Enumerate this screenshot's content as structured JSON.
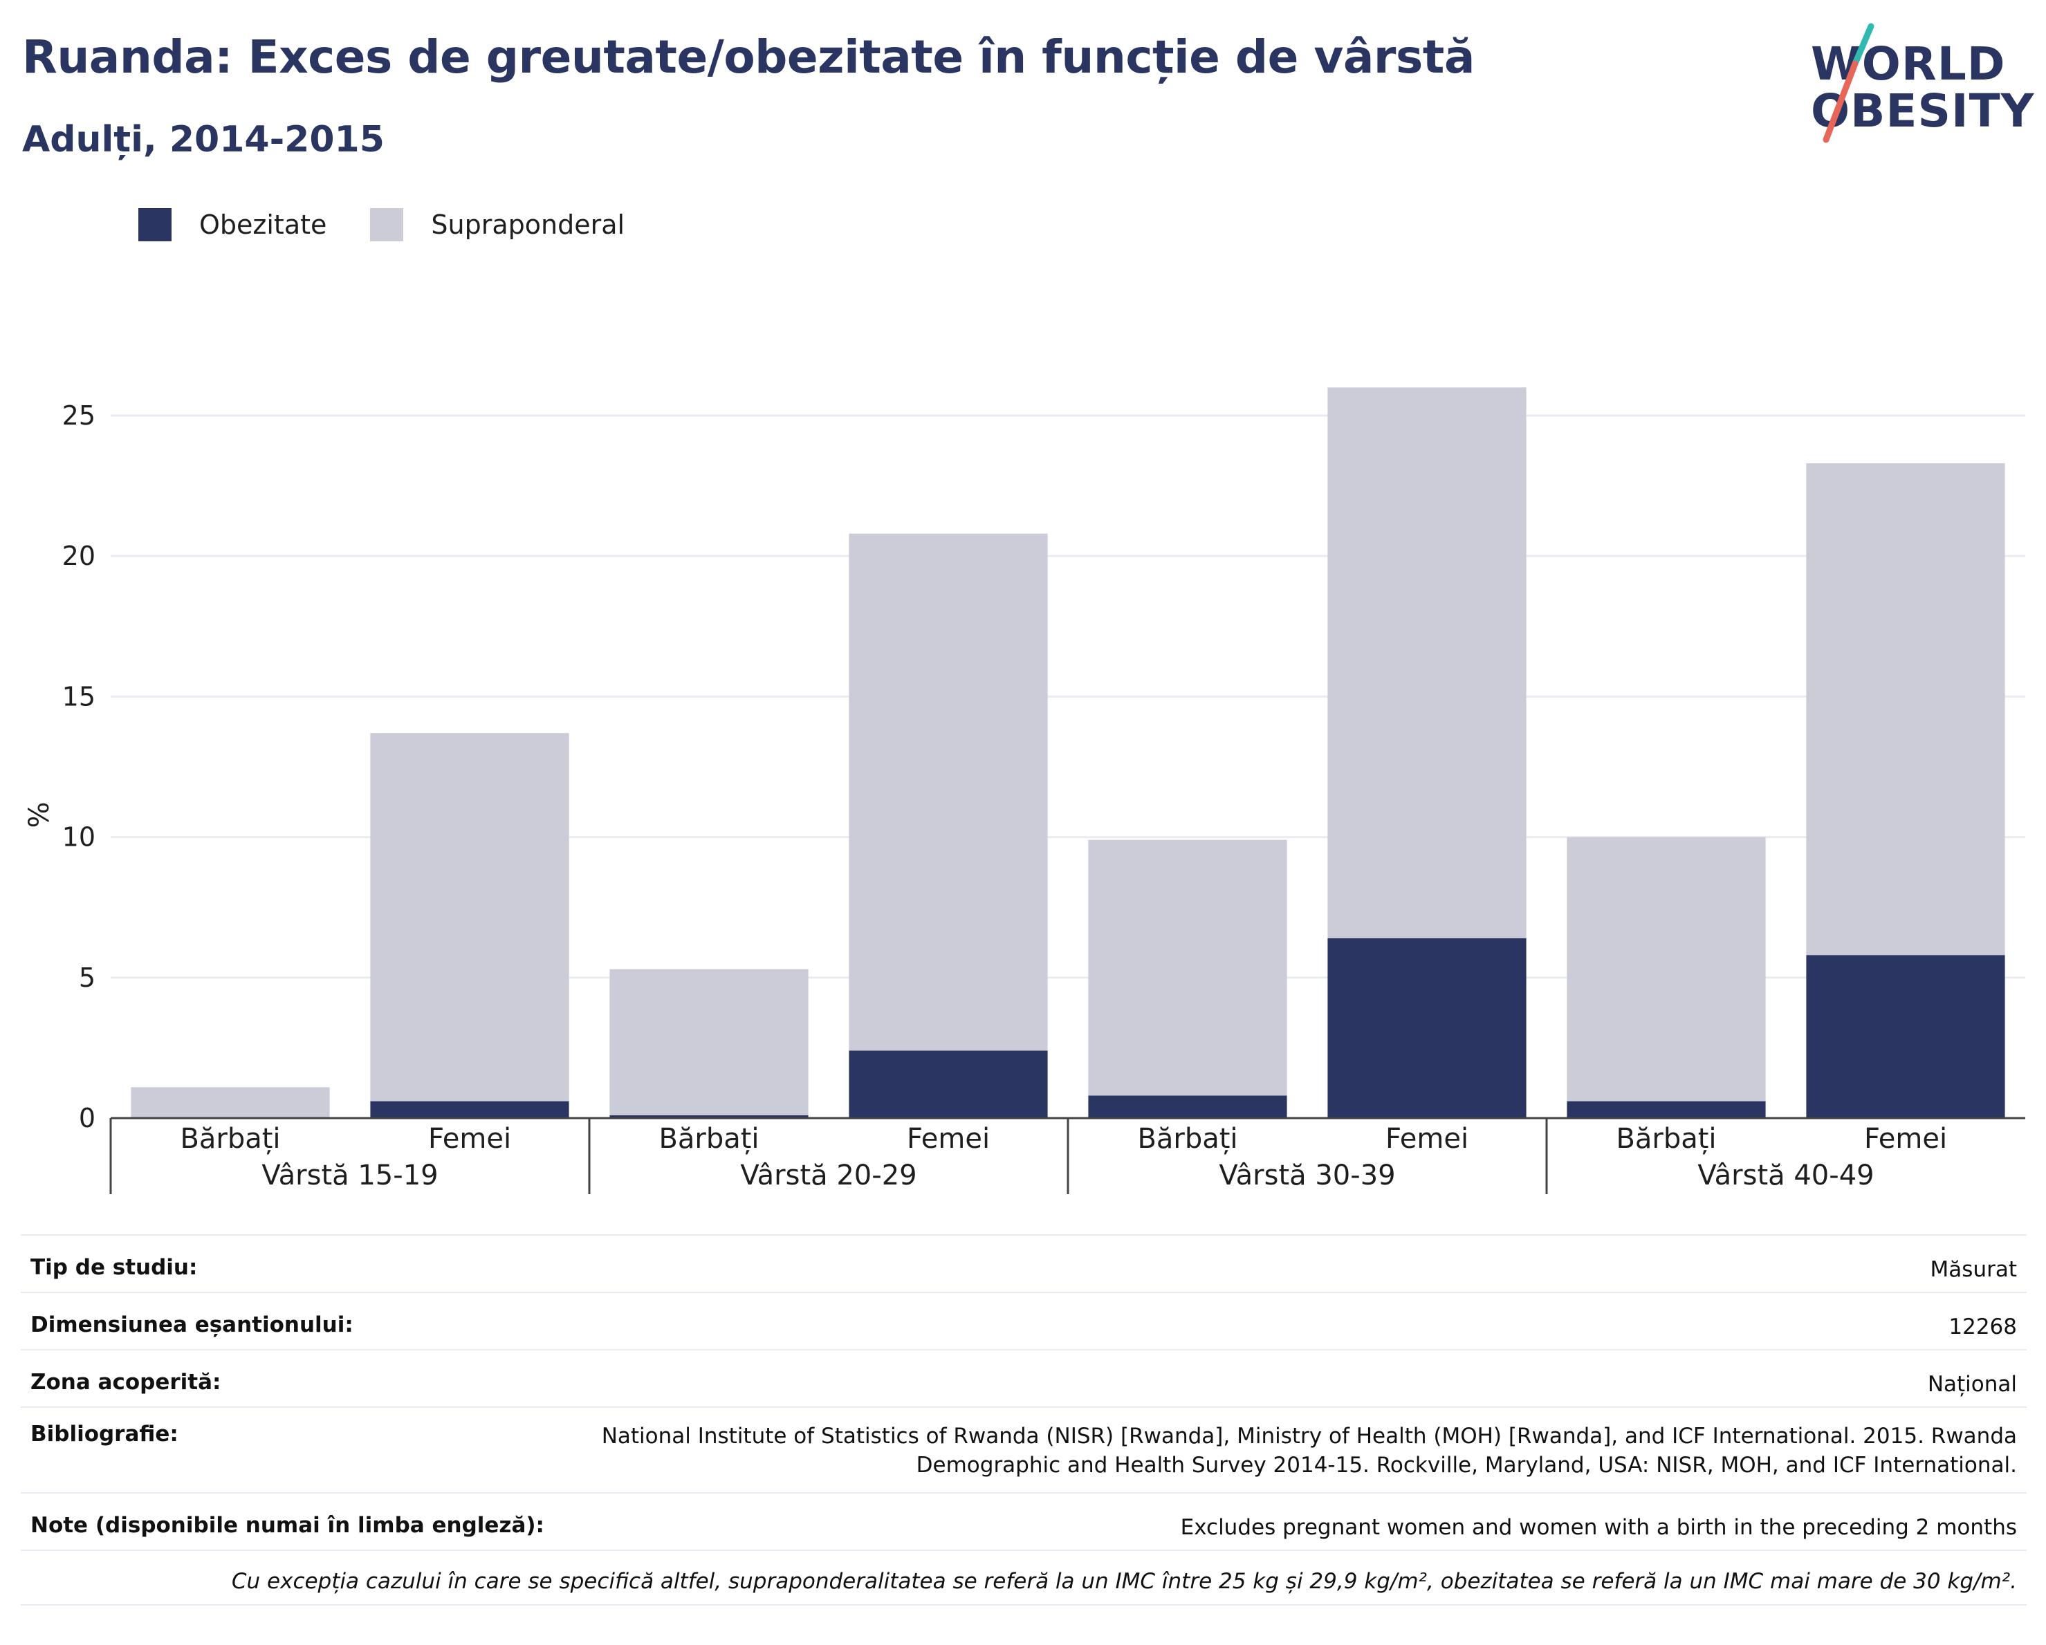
{
  "title": "Ruanda: Exces de greutate/obezitate în funcție de vârstă",
  "subtitle": "Adulți, 2014-2015",
  "logo": {
    "line1": "WORLD",
    "line2": "OBESITY"
  },
  "colors": {
    "obesity": "#2a3561",
    "overweight": "#cbccd8",
    "grid": "#e9ebf2",
    "axis": "#444444",
    "text": "#1e1e1e"
  },
  "legend": [
    {
      "label": "Obezitate",
      "color": "#2a3561"
    },
    {
      "label": "Supraponderal",
      "color": "#cbccd8"
    }
  ],
  "chart_data": {
    "type": "bar",
    "stacked": true,
    "ylabel": "%",
    "ylim": [
      0,
      26.5
    ],
    "yticks": [
      0,
      5,
      10,
      15,
      20,
      25
    ],
    "grid": true,
    "legend_position": "top-left",
    "groups": [
      "Vârstă 15-19",
      "Vârstă 20-29",
      "Vârstă 30-39",
      "Vârstă 40-49"
    ],
    "categories": [
      "Bărbați",
      "Femei",
      "Bărbați",
      "Femei",
      "Bărbați",
      "Femei",
      "Bărbați",
      "Femei"
    ],
    "series": [
      {
        "name": "Obezitate",
        "values": [
          0.0,
          0.6,
          0.1,
          2.4,
          0.8,
          6.4,
          0.6,
          5.8
        ]
      },
      {
        "name": "Supraponderal",
        "values": [
          1.1,
          13.1,
          5.2,
          18.4,
          9.1,
          19.6,
          9.4,
          17.5
        ]
      }
    ]
  },
  "info": {
    "rows": [
      {
        "key": "Tip de studiu:",
        "value": "Măsurat"
      },
      {
        "key": "Dimensiunea eșantionului:",
        "value": "12268"
      },
      {
        "key": "Zona acoperită:",
        "value": "Național"
      },
      {
        "key": "Bibliografie:",
        "value": "National Institute of Statistics of Rwanda (NISR) [Rwanda], Ministry of Health (MOH) [Rwanda], and ICF International. 2015. Rwanda Demographic and Health Survey 2014-15. Rockville, Maryland, USA: NISR, MOH, and ICF International."
      },
      {
        "key": "Note (disponibile numai în limba engleză):",
        "value": "Excludes pregnant women and women with a birth in the preceding 2 months"
      }
    ],
    "footnote": "Cu excepția cazului în care se specifică altfel, supraponderalitatea se referă la un IMC între 25 kg și 29,9 kg/m², obezitatea se referă la un IMC mai mare de 30 kg/m²."
  }
}
